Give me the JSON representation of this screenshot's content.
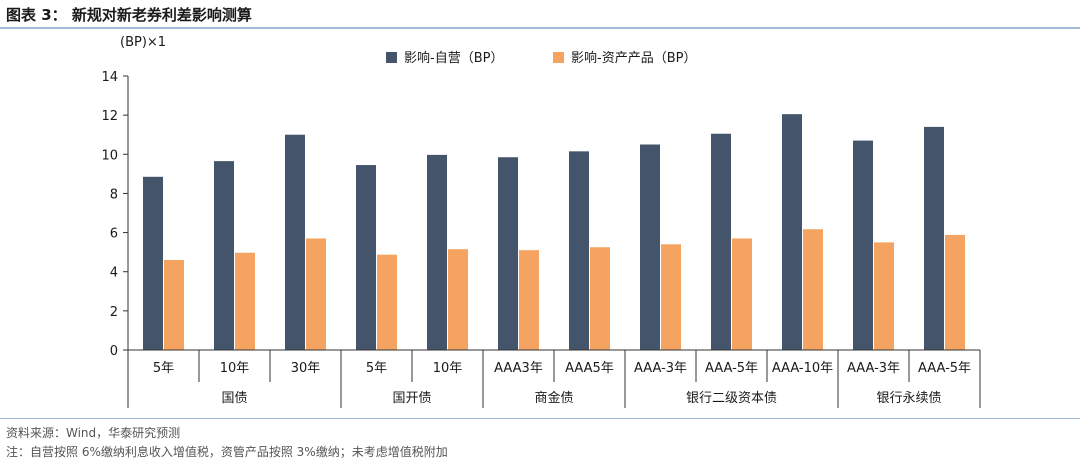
{
  "figure": {
    "title": "图表 3：   新规对新老券利差影响测算",
    "source": "资料来源：Wind，华泰研究预测",
    "note": "注：自营按照 6%缴纳利息收入增值税，资管产品按照 3%缴纳；未考虑增值税附加"
  },
  "chart_data": {
    "type": "bar",
    "ylabel": "(BP)×1",
    "ylim": [
      0,
      14
    ],
    "yticks": [
      0,
      2,
      4,
      6,
      8,
      10,
      12,
      14
    ],
    "grid": false,
    "legend_position": "top",
    "categories": [
      "5年",
      "10年",
      "30年",
      "5年",
      "10年",
      "AAA3年",
      "AAA5年",
      "AAA-3年",
      "AAA-5年",
      "AAA-10年",
      "AAA-3年",
      "AAA-5年"
    ],
    "groups": [
      {
        "label": "国债",
        "count": 3
      },
      {
        "label": "国开债",
        "count": 2
      },
      {
        "label": "商金债",
        "count": 2
      },
      {
        "label": "银行二级资本债",
        "count": 3
      },
      {
        "label": "银行永续债",
        "count": 2
      }
    ],
    "series": [
      {
        "name": "影响-自营（BP）",
        "color": "#44546a",
        "values": [
          8.85,
          9.65,
          11.0,
          9.45,
          9.97,
          9.85,
          10.15,
          10.5,
          11.05,
          12.05,
          10.7,
          11.4
        ]
      },
      {
        "name": "影响-资产产品（BP）",
        "color": "#f4a460",
        "values": [
          4.6,
          4.97,
          5.7,
          4.87,
          5.15,
          5.1,
          5.25,
          5.4,
          5.7,
          6.17,
          5.5,
          5.88
        ]
      }
    ]
  }
}
